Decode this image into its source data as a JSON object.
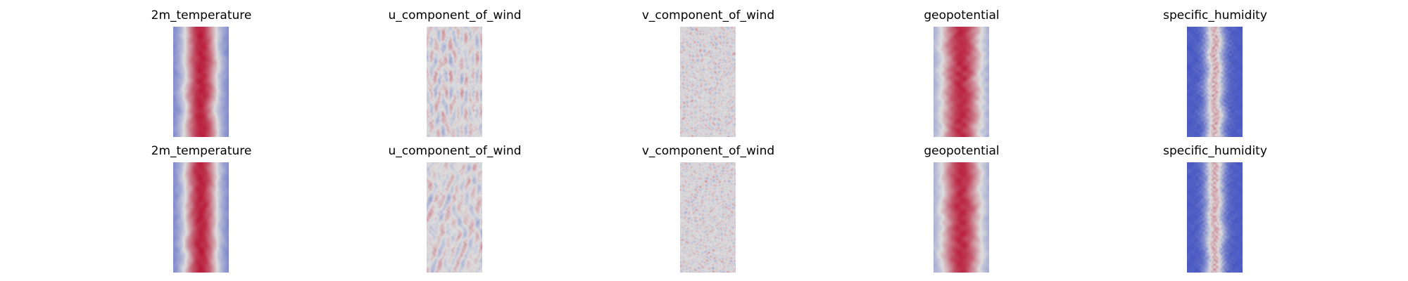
{
  "figure": {
    "rows": [
      {
        "panels": [
          {
            "title": "2m_temperature",
            "field": "temperature"
          },
          {
            "title": "u_component_of_wind",
            "field": "u_wind"
          },
          {
            "title": "v_component_of_wind",
            "field": "v_wind"
          },
          {
            "title": "geopotential",
            "field": "geopotential"
          },
          {
            "title": "specific_humidity",
            "field": "humidity"
          }
        ]
      },
      {
        "panels": [
          {
            "title": "2m_temperature",
            "field": "temperature"
          },
          {
            "title": "u_component_of_wind",
            "field": "u_wind"
          },
          {
            "title": "v_component_of_wind",
            "field": "v_wind"
          },
          {
            "title": "geopotential",
            "field": "geopotential"
          },
          {
            "title": "specific_humidity",
            "field": "humidity"
          }
        ]
      }
    ]
  },
  "chart_data": {
    "type": "heatmap",
    "colormap": "coolwarm",
    "colors": {
      "low": "#3b4cc0",
      "mid": "#dddddd",
      "high": "#b40426"
    },
    "axes_visible": false,
    "grid": false,
    "panels": [
      {
        "row": 0,
        "col": 0,
        "title": "2m_temperature"
      },
      {
        "row": 0,
        "col": 1,
        "title": "u_component_of_wind"
      },
      {
        "row": 0,
        "col": 2,
        "title": "v_component_of_wind"
      },
      {
        "row": 0,
        "col": 3,
        "title": "geopotential"
      },
      {
        "row": 0,
        "col": 4,
        "title": "specific_humidity"
      },
      {
        "row": 1,
        "col": 0,
        "title": "2m_temperature"
      },
      {
        "row": 1,
        "col": 1,
        "title": "u_component_of_wind"
      },
      {
        "row": 1,
        "col": 2,
        "title": "v_component_of_wind"
      },
      {
        "row": 1,
        "col": 3,
        "title": "geopotential"
      },
      {
        "row": 1,
        "col": 4,
        "title": "specific_humidity"
      }
    ]
  }
}
